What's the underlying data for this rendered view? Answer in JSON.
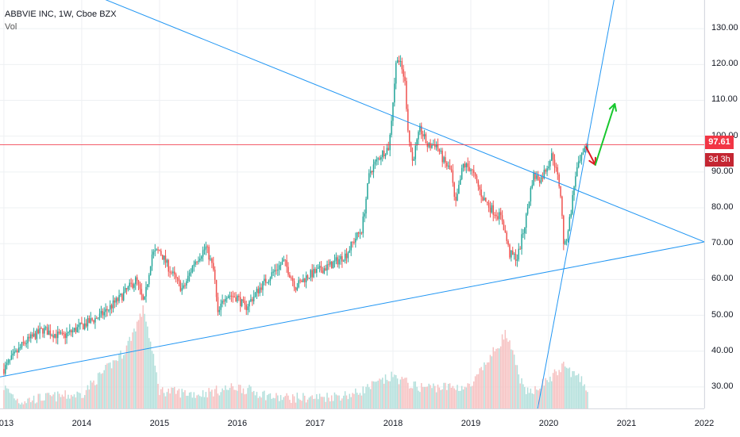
{
  "legend": {
    "title": "ABBVIE INC, 1W, Cboe BZX",
    "vol_label": "Vol"
  },
  "price_label": "97.61",
  "countdown_label": "3d 3h",
  "chart_data": {
    "type": "candlestick",
    "title": "ABBVIE INC, 1W, Cboe BZX",
    "y_ticks": [
      "130.00",
      "120.00",
      "110.00",
      "100.00",
      "90.00",
      "80.00",
      "70.00",
      "60.00",
      "50.00",
      "40.00",
      "30.00"
    ],
    "x_ticks": [
      "2013",
      "2014",
      "2015",
      "2016",
      "2017",
      "2018",
      "2019",
      "2020",
      "2021",
      "2022"
    ],
    "ylim": [
      24,
      138
    ],
    "xlim": [
      2012.95,
      2022.0
    ],
    "last_price": 97.61,
    "price_path": [
      [
        2013.0,
        35
      ],
      [
        2013.25,
        42
      ],
      [
        2013.5,
        46
      ],
      [
        2013.75,
        44
      ],
      [
        2014.0,
        47
      ],
      [
        2014.25,
        50
      ],
      [
        2014.5,
        55
      ],
      [
        2014.7,
        60
      ],
      [
        2014.8,
        53
      ],
      [
        2014.9,
        67
      ],
      [
        2015.0,
        68
      ],
      [
        2015.15,
        62
      ],
      [
        2015.3,
        57
      ],
      [
        2015.45,
        65
      ],
      [
        2015.6,
        69
      ],
      [
        2015.7,
        62
      ],
      [
        2015.75,
        50
      ],
      [
        2015.85,
        56
      ],
      [
        2016.0,
        55
      ],
      [
        2016.1,
        52
      ],
      [
        2016.3,
        58
      ],
      [
        2016.5,
        63
      ],
      [
        2016.6,
        65
      ],
      [
        2016.75,
        58
      ],
      [
        2016.9,
        61
      ],
      [
        2017.0,
        62
      ],
      [
        2017.2,
        64
      ],
      [
        2017.4,
        67
      ],
      [
        2017.5,
        71
      ],
      [
        2017.6,
        74
      ],
      [
        2017.7,
        90
      ],
      [
        2017.85,
        95
      ],
      [
        2017.95,
        97
      ],
      [
        2018.05,
        123
      ],
      [
        2018.15,
        116
      ],
      [
        2018.2,
        100
      ],
      [
        2018.25,
        93
      ],
      [
        2018.35,
        102
      ],
      [
        2018.45,
        97
      ],
      [
        2018.55,
        98
      ],
      [
        2018.65,
        93
      ],
      [
        2018.75,
        90
      ],
      [
        2018.8,
        80
      ],
      [
        2018.9,
        92
      ],
      [
        2019.0,
        91
      ],
      [
        2019.15,
        83
      ],
      [
        2019.25,
        80
      ],
      [
        2019.4,
        77
      ],
      [
        2019.5,
        67
      ],
      [
        2019.6,
        66
      ],
      [
        2019.7,
        76
      ],
      [
        2019.8,
        89
      ],
      [
        2019.9,
        88
      ],
      [
        2020.05,
        95
      ],
      [
        2020.15,
        85
      ],
      [
        2020.2,
        68
      ],
      [
        2020.28,
        78
      ],
      [
        2020.35,
        90
      ],
      [
        2020.45,
        95
      ],
      [
        2020.5,
        97.61
      ]
    ],
    "volume_path": [
      [
        2013.0,
        30
      ],
      [
        2013.1,
        28
      ],
      [
        2013.2,
        26
      ],
      [
        2013.5,
        27
      ],
      [
        2014.0,
        28
      ],
      [
        2014.55,
        40
      ],
      [
        2014.8,
        52
      ],
      [
        2015.0,
        29
      ],
      [
        2015.5,
        28
      ],
      [
        2016.0,
        30
      ],
      [
        2016.5,
        27
      ],
      [
        2017.0,
        27
      ],
      [
        2017.5,
        28
      ],
      [
        2018.0,
        33
      ],
      [
        2018.3,
        30
      ],
      [
        2019.0,
        30
      ],
      [
        2019.45,
        45
      ],
      [
        2019.7,
        28
      ],
      [
        2020.0,
        32
      ],
      [
        2020.2,
        36
      ],
      [
        2020.5,
        30
      ]
    ],
    "trendlines": [
      {
        "name": "upper-resistance",
        "color": "#2196f3",
        "points": [
          [
            2012.95,
            150
          ],
          [
            2022.0,
            70.5
          ]
        ]
      },
      {
        "name": "lower-support",
        "color": "#2196f3",
        "points": [
          [
            2012.95,
            32.8
          ],
          [
            2022.0,
            70.5
          ]
        ]
      },
      {
        "name": "steep-support",
        "color": "#2196f3",
        "points": [
          [
            2019.86,
            24
          ],
          [
            2020.84,
            138
          ]
        ]
      }
    ],
    "arrows": [
      {
        "name": "down-arrow",
        "color": "#e01b24",
        "from": [
          2020.48,
          97
        ],
        "to": [
          2020.6,
          92
        ]
      },
      {
        "name": "up-arrow",
        "color": "#18c72e",
        "from": [
          2020.6,
          92
        ],
        "to": [
          2020.85,
          109
        ]
      }
    ],
    "horizontal_line": {
      "value": 97.61,
      "color": "#f23645"
    },
    "colors": {
      "up": "#26a69a",
      "down": "#ef5350",
      "vol_up": "#b2dfdb",
      "vol_down": "#f6c1c1",
      "grid": "#eef0f3"
    }
  }
}
